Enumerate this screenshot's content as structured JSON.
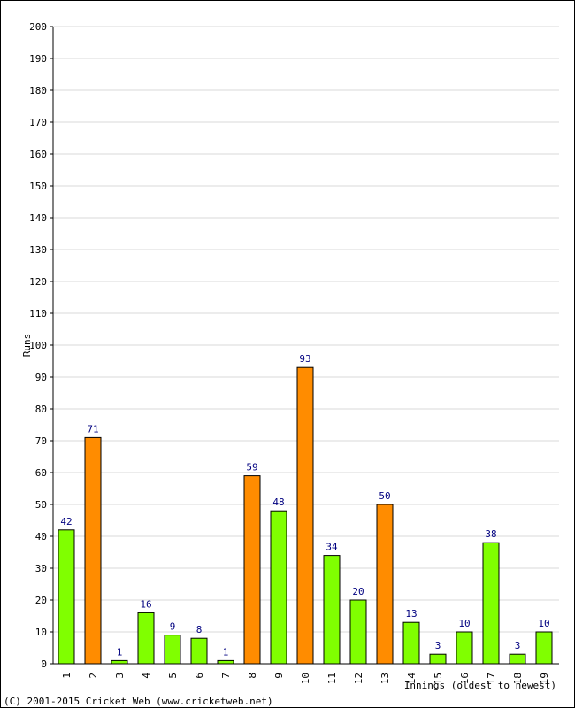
{
  "chart_data": {
    "type": "bar",
    "categories": [
      "1",
      "2",
      "3",
      "4",
      "5",
      "6",
      "7",
      "8",
      "9",
      "10",
      "11",
      "12",
      "13",
      "14",
      "15",
      "16",
      "17",
      "18",
      "19"
    ],
    "values": [
      42,
      71,
      1,
      16,
      9,
      8,
      1,
      59,
      48,
      93,
      34,
      20,
      50,
      13,
      3,
      10,
      38,
      3,
      10
    ],
    "bar_colors": [
      "#80ff00",
      "#ff8c00",
      "#80ff00",
      "#80ff00",
      "#80ff00",
      "#80ff00",
      "#80ff00",
      "#ff8c00",
      "#80ff00",
      "#ff8c00",
      "#80ff00",
      "#80ff00",
      "#ff8c00",
      "#80ff00",
      "#80ff00",
      "#80ff00",
      "#80ff00",
      "#80ff00",
      "#80ff00"
    ],
    "title": "",
    "xlabel": "Innings (oldest to newest)",
    "ylabel": "Runs",
    "ylim": [
      0,
      200
    ],
    "yticks": [
      0,
      10,
      20,
      30,
      40,
      50,
      60,
      70,
      80,
      90,
      100,
      110,
      120,
      130,
      140,
      150,
      160,
      170,
      180,
      190,
      200
    ],
    "grid": true,
    "colors": {
      "green": "#80ff00",
      "orange": "#ff8c00",
      "value_label": "#000080",
      "grid": "#d8d8d8"
    }
  },
  "footer": {
    "copyright": "(C) 2001-2015 Cricket Web (www.cricketweb.net)"
  }
}
